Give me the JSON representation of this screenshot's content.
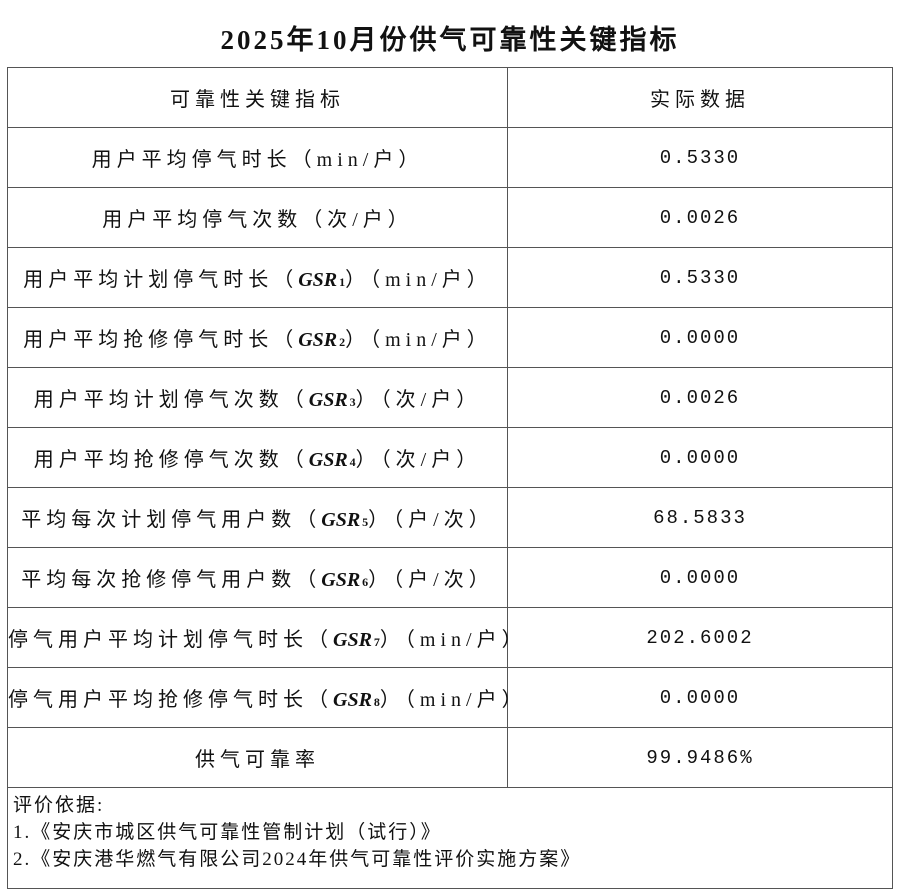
{
  "title": "2025年10月份供气可靠性关键指标",
  "headers": [
    "可靠性关键指标",
    "实际数据"
  ],
  "rows": [
    {
      "prefix": "用户平均停气时长（min/户）",
      "code": "",
      "sub": "",
      "suffix": "",
      "value": "0.5330"
    },
    {
      "prefix": "用户平均停气次数（次/户）",
      "code": "",
      "sub": "",
      "suffix": "",
      "value": "0.0026"
    },
    {
      "prefix": "用户平均计划停气时长（",
      "code": "GSR",
      "sub": "1",
      "suffix": "）（min/户）",
      "value": "0.5330"
    },
    {
      "prefix": "用户平均抢修停气时长（",
      "code": "GSR",
      "sub": "2",
      "suffix": "）（min/户）",
      "value": "0.0000"
    },
    {
      "prefix": "用户平均计划停气次数（",
      "code": "GSR",
      "sub": "3",
      "suffix": "）（次/户）",
      "value": "0.0026"
    },
    {
      "prefix": "用户平均抢修停气次数（",
      "code": "GSR",
      "sub": "4",
      "suffix": "）（次/户）",
      "value": "0.0000"
    },
    {
      "prefix": "平均每次计划停气用户数（",
      "code": "GSR",
      "sub": "5",
      "suffix": "）（户/次）",
      "value": "68.5833"
    },
    {
      "prefix": "平均每次抢修停气用户数（",
      "code": "GSR",
      "sub": "6",
      "suffix": "）（户/次）",
      "value": "0.0000"
    },
    {
      "prefix": "停气用户平均计划停气时长（",
      "code": "GSR",
      "sub": "7",
      "suffix": "）（min/户）",
      "value": "202.6002"
    },
    {
      "prefix": "停气用户平均抢修停气时长（",
      "code": "GSR",
      "sub": "8",
      "suffix": "）（min/户）",
      "value": "0.0000"
    },
    {
      "prefix": "供气可靠率",
      "code": "",
      "sub": "",
      "suffix": "",
      "value": "99.9486%"
    }
  ],
  "footer": {
    "heading": "评价依据:",
    "items": [
      "1.《安庆市城区供气可靠性管制计划（试行）》",
      "2.《安庆港华燃气有限公司2024年供气可靠性评价实施方案》"
    ]
  }
}
